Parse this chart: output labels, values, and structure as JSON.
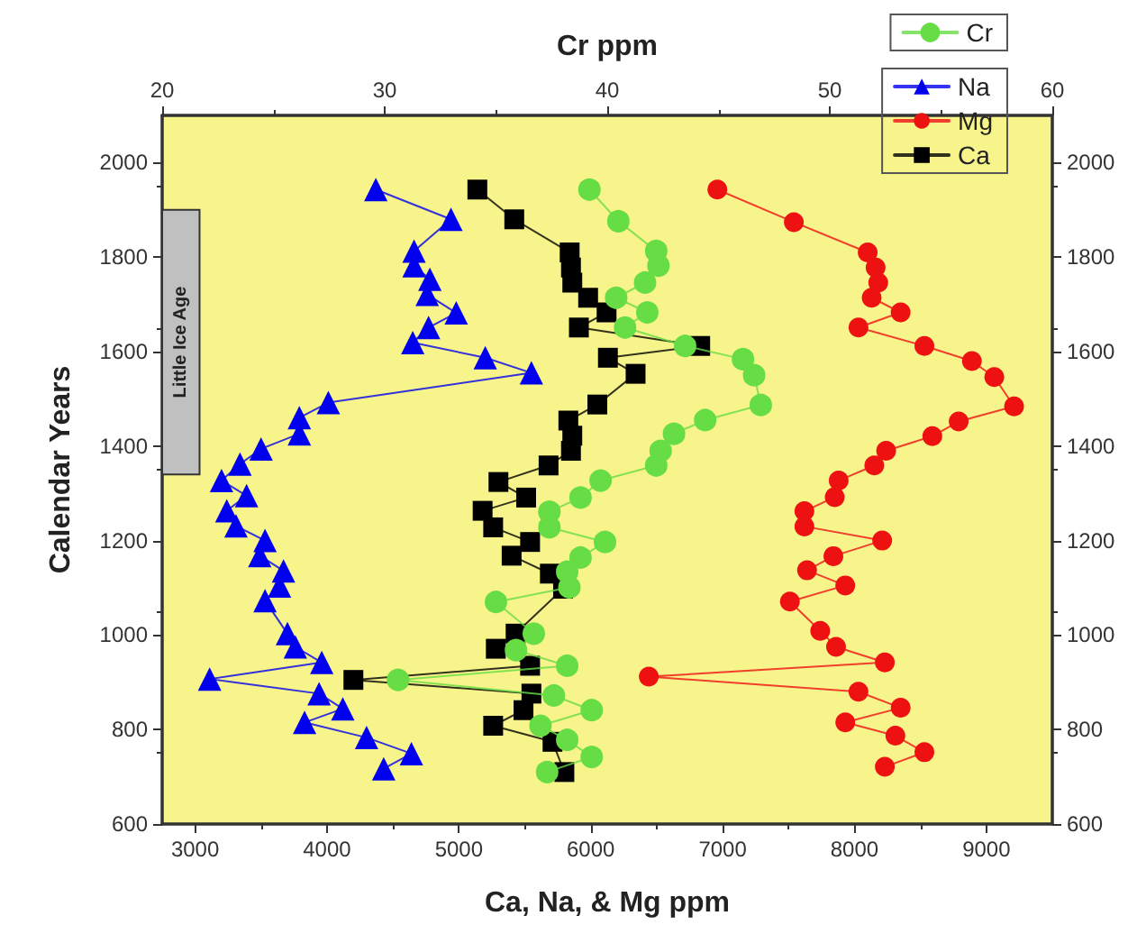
{
  "chart_data": {
    "type": "line",
    "xlabel": "Ca, Na, & Mg ppm",
    "x2label": "Cr ppm",
    "ylabel": "Calendar Years",
    "xlim": [
      2750,
      9500
    ],
    "xticks": [
      3000,
      4000,
      5000,
      6000,
      7000,
      8000,
      9000
    ],
    "x2lim": [
      20,
      60
    ],
    "x2ticks": [
      20,
      30,
      40,
      50,
      60
    ],
    "ylim": [
      600,
      2100
    ],
    "yticks": [
      600,
      800,
      1000,
      1200,
      1400,
      1600,
      1800,
      2000
    ],
    "y2lim": [
      600,
      2100
    ],
    "y2ticks": [
      600,
      800,
      1000,
      1200,
      1400,
      1600,
      1800,
      2000
    ],
    "grid": false,
    "legend": "top right",
    "bands": [
      {
        "axis": "y",
        "from": 1340,
        "to": 1900,
        "label": "Little Ice Age",
        "color": "#c0c0c0"
      }
    ],
    "series": [
      {
        "name": "Cr",
        "color": "#66dd44",
        "axis": "x2",
        "marker": "circle",
        "x": [
          37.3,
          39.3,
          38.2,
          37.0,
          39.3,
          37.6,
          30.6,
          38.2,
          35.9,
          36.7,
          35.0,
          38.3,
          38.2,
          38.8,
          39.9,
          37.4,
          37.4,
          38.8,
          39.7,
          42.2,
          42.4,
          43.0,
          44.4,
          46.9,
          46.6,
          46.1,
          43.5,
          40.8,
          41.8,
          40.4,
          41.7,
          42.3,
          42.2,
          40.5,
          39.2
        ],
        "values": [
          710,
          742,
          778,
          808,
          841,
          872,
          905,
          935,
          968,
          1003,
          1070,
          1101,
          1134,
          1164,
          1197,
          1228,
          1261,
          1291,
          1327,
          1359,
          1390,
          1426,
          1455,
          1487,
          1550,
          1584,
          1612,
          1651,
          1683,
          1714,
          1746,
          1782,
          1813,
          1876,
          1943
        ]
      },
      {
        "name": "Na",
        "color": "#0000ee",
        "marker": "triangle",
        "x": [
          4430,
          4640,
          4300,
          3830,
          4120,
          3940,
          3110,
          3960,
          3760,
          3700,
          3530,
          3640,
          3670,
          3490,
          3530,
          3310,
          3240,
          3390,
          3200,
          3340,
          3500,
          3790,
          3790,
          4010,
          5550,
          5200,
          4650,
          4770,
          4980,
          4760,
          4780,
          4660,
          4660,
          4940,
          4370
        ],
        "values": [
          717,
          749,
          783,
          815,
          844,
          876,
          907,
          942,
          975,
          1003,
          1073,
          1104,
          1136,
          1168,
          1200,
          1231,
          1263,
          1295,
          1327,
          1362,
          1394,
          1426,
          1460,
          1492,
          1555,
          1587,
          1619,
          1651,
          1682,
          1721,
          1753,
          1782,
          1813,
          1880,
          1943
        ]
      },
      {
        "name": "Mg",
        "color": "#ee1111",
        "marker": "circle",
        "x": [
          8230,
          8530,
          8310,
          7930,
          8350,
          8030,
          6440,
          8230,
          7860,
          7740,
          7510,
          7930,
          7640,
          7840,
          8210,
          7620,
          7620,
          7850,
          7880,
          8150,
          8240,
          8590,
          8790,
          9210,
          9060,
          8890,
          8530,
          8030,
          8350,
          8130,
          8180,
          8160,
          8100,
          7540,
          6960
        ],
        "values": [
          721,
          752,
          787,
          815,
          846,
          880,
          912,
          942,
          975,
          1009,
          1071,
          1105,
          1137,
          1167,
          1200,
          1230,
          1262,
          1292,
          1327,
          1359,
          1390,
          1421,
          1452,
          1484,
          1546,
          1580,
          1612,
          1651,
          1683,
          1714,
          1746,
          1778,
          1810,
          1874,
          1943
        ]
      },
      {
        "name": "Ca",
        "color": "#000000",
        "marker": "square",
        "x": [
          5800,
          5710,
          5260,
          5490,
          5550,
          4200,
          5540,
          5280,
          5430,
          5790,
          5690,
          5400,
          5540,
          5260,
          5180,
          5510,
          5300,
          5680,
          5850,
          5860,
          5830,
          6050,
          6340,
          6130,
          6830,
          5910,
          6120,
          5980,
          5860,
          5850,
          5840,
          5420,
          5140
        ],
        "values": [
          710,
          774,
          808,
          841,
          876,
          905,
          935,
          971,
          1003,
          1098,
          1130,
          1168,
          1197,
          1228,
          1263,
          1291,
          1324,
          1359,
          1390,
          1422,
          1454,
          1488,
          1553,
          1587,
          1612,
          1651,
          1683,
          1714,
          1746,
          1778,
          1810,
          1880,
          1943
        ]
      }
    ]
  }
}
